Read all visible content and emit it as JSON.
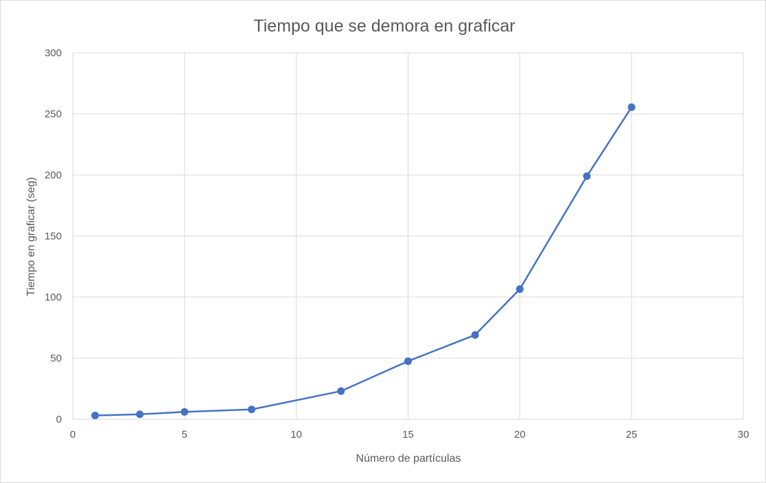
{
  "chart_data": {
    "type": "scatter",
    "title": "Tiempo que se demora en graficar",
    "xlabel": "Número de partículas",
    "ylabel": "Tiempo en graficar (seg)",
    "xlim": [
      0,
      30
    ],
    "ylim": [
      0,
      300
    ],
    "xticks": [
      "0",
      "5",
      "10",
      "15",
      "20",
      "25",
      "30"
    ],
    "yticks": [
      "0",
      "50",
      "100",
      "150",
      "200",
      "250",
      "300"
    ],
    "grid": true,
    "legend": "none",
    "series": [
      {
        "color": "#4472c4",
        "x": [
          1,
          3,
          5,
          8,
          12,
          15,
          18,
          20,
          23,
          25
        ],
        "y": [
          3,
          4,
          6,
          8,
          23,
          47.5,
          69,
          106.5,
          199,
          255.5
        ]
      }
    ]
  }
}
